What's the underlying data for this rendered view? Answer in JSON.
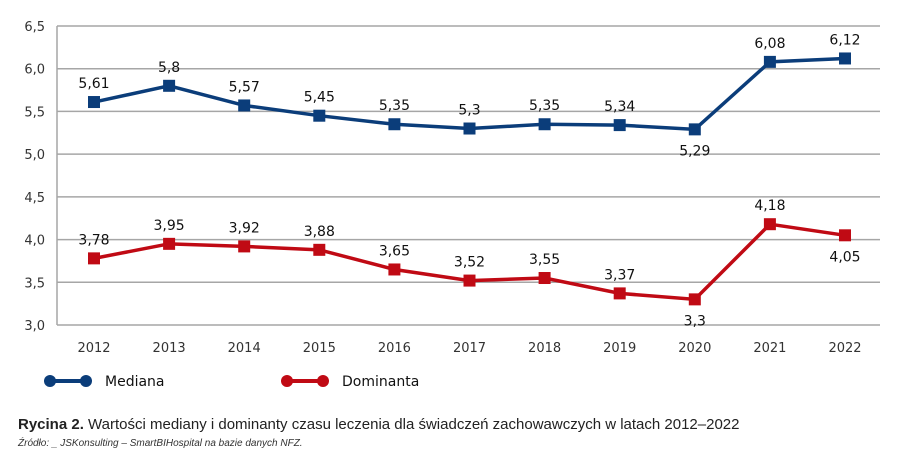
{
  "chart_data": {
    "type": "line",
    "x": [
      "2012",
      "2013",
      "2014",
      "2015",
      "2016",
      "2017",
      "2018",
      "2019",
      "2020",
      "2021",
      "2022"
    ],
    "ylim": [
      3.0,
      6.5
    ],
    "yticks": [
      "3,0",
      "3,5",
      "4,0",
      "4,5",
      "5,0",
      "5,5",
      "6,0",
      "6,5"
    ],
    "grid": true,
    "legend_placement": "bottom-left",
    "series": [
      {
        "name": "Mediana",
        "color": "#0b3d7a",
        "values": [
          5.61,
          5.8,
          5.57,
          5.45,
          5.35,
          5.3,
          5.35,
          5.34,
          5.29,
          6.08,
          6.12
        ],
        "labels": [
          "5,61",
          "5,8",
          "5,57",
          "5,45",
          "5,35",
          "5,3",
          "5,35",
          "5,34",
          "5,29",
          "6,08",
          "6,12"
        ]
      },
      {
        "name": "Dominanta",
        "color": "#c00a14",
        "values": [
          3.78,
          3.95,
          3.92,
          3.88,
          3.65,
          3.52,
          3.55,
          3.37,
          3.3,
          4.18,
          4.05
        ],
        "labels": [
          "3,78",
          "3,95",
          "3,92",
          "3,88",
          "3,65",
          "3,52",
          "3,55",
          "3,37",
          "3,3",
          "4,18",
          "4,05"
        ]
      }
    ]
  },
  "caption": {
    "label": "Rycina 2.",
    "text": " Wartości mediany i dominanty czasu leczenia dla świadczeń zachowawczych w latach 2012–2022"
  },
  "source": "Źródło: _ JSKonsulting – SmartBIHospital na bazie danych NFZ."
}
